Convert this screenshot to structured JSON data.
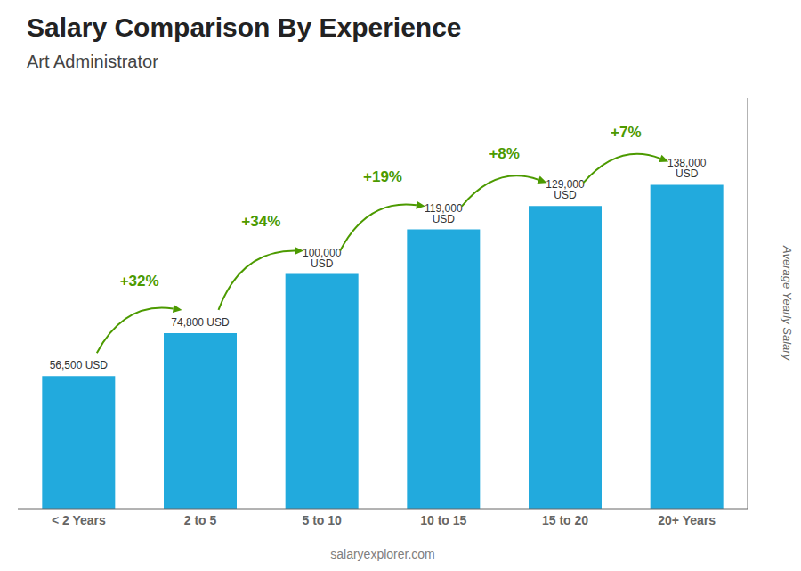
{
  "chart_data": {
    "type": "bar",
    "title": "Salary Comparison By Experience",
    "subtitle": "Art Administrator",
    "ylabel": "Average Yearly Salary",
    "xlabel": "salaryexplorer.com",
    "categories": [
      "< 2 Years",
      "2 to 5",
      "5 to 10",
      "10 to 15",
      "15 to 20",
      "20+ Years"
    ],
    "values": [
      56500,
      74800,
      100000,
      119000,
      129000,
      138000
    ],
    "value_labels": [
      "56,500 USD",
      "74,800 USD",
      "100,000 USD",
      "119,000 USD",
      "129,000 USD",
      "138,000 USD"
    ],
    "data_labels": true,
    "annotations": [
      "+32%",
      "+34%",
      "+19%",
      "+8%",
      "+7%"
    ],
    "color": "#22aadd",
    "ylim": [
      0,
      175000
    ],
    "tick_labels": "x",
    "grid": false
  }
}
